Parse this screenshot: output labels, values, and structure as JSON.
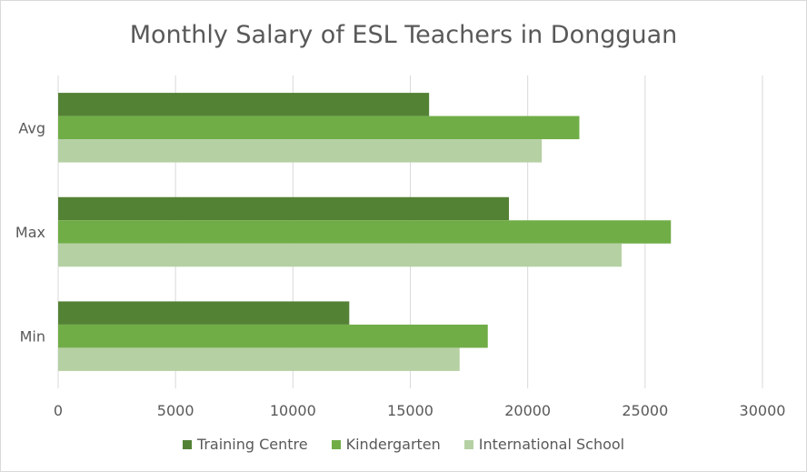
{
  "chart_data": {
    "type": "bar",
    "orientation": "horizontal",
    "title": "Monthly Salary of ESL Teachers in Dongguan",
    "xlabel": "",
    "ylabel": "",
    "categories": [
      "Avg",
      "Max",
      "Min"
    ],
    "series": [
      {
        "name": "Training Centre",
        "color": "#548235",
        "values": [
          15800,
          19200,
          12400
        ]
      },
      {
        "name": "Kindergarten",
        "color": "#70ad47",
        "values": [
          22200,
          26100,
          18300
        ]
      },
      {
        "name": "International School",
        "color": "#b5d0a3",
        "values": [
          20600,
          24000,
          17100
        ]
      }
    ],
    "xlim": [
      0,
      30000
    ],
    "xticks": [
      "0",
      "5000",
      "10000",
      "15000",
      "20000",
      "25000",
      "30000"
    ],
    "xtick_values": [
      0,
      5000,
      10000,
      15000,
      20000,
      25000,
      30000
    ],
    "grid": "vertical",
    "legend_position": "bottom"
  }
}
